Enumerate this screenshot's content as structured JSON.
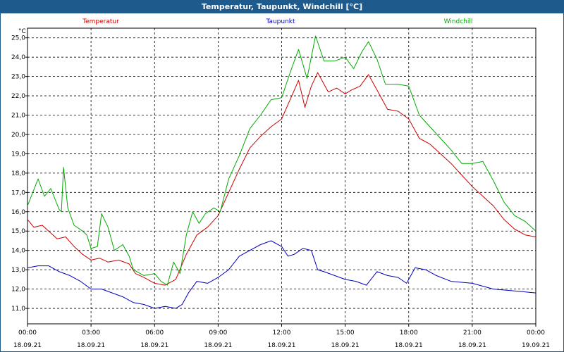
{
  "title": "Temperatur, Taupunkt, Windchill [°C]",
  "chart_data": {
    "type": "line",
    "title": "Temperatur, Taupunkt, Windchill [°C]",
    "ylabel": "°C",
    "ylim": [
      10.2,
      25.5
    ],
    "xlim": [
      0,
      24
    ],
    "yticks": [
      "25,0",
      "24,0",
      "23,0",
      "22,0",
      "21,0",
      "20,0",
      "19,0",
      "18,0",
      "17,0",
      "16,0",
      "15,0",
      "14,0",
      "13,0",
      "12,0",
      "11,0"
    ],
    "ytick_values": [
      25,
      24,
      23,
      22,
      21,
      20,
      19,
      18,
      17,
      16,
      15,
      14,
      13,
      12,
      11
    ],
    "xticks": [
      {
        "time": "00:00",
        "date": "18.09.21",
        "hour": 0
      },
      {
        "time": "03:00",
        "date": "18.09.21",
        "hour": 3
      },
      {
        "time": "06:00",
        "date": "18.09.21",
        "hour": 6
      },
      {
        "time": "09:00",
        "date": "18.09.21",
        "hour": 9
      },
      {
        "time": "12:00",
        "date": "18.09.21",
        "hour": 12
      },
      {
        "time": "15:00",
        "date": "18.09.21",
        "hour": 15
      },
      {
        "time": "18:00",
        "date": "18.09.21",
        "hour": 18
      },
      {
        "time": "21:00",
        "date": "18.09.21",
        "hour": 21
      },
      {
        "time": "00:00",
        "date": "19.09.21",
        "hour": 24
      }
    ],
    "grid": true,
    "legend_position": "top",
    "series": [
      {
        "name": "Temperatur",
        "color": "#cc0000",
        "points": [
          [
            0,
            15.6
          ],
          [
            0.3,
            15.2
          ],
          [
            0.7,
            15.3
          ],
          [
            1.0,
            15.0
          ],
          [
            1.4,
            14.6
          ],
          [
            1.8,
            14.7
          ],
          [
            2.2,
            14.2
          ],
          [
            2.6,
            13.8
          ],
          [
            3.0,
            13.5
          ],
          [
            3.4,
            13.6
          ],
          [
            3.8,
            13.4
          ],
          [
            4.3,
            13.5
          ],
          [
            4.8,
            13.3
          ],
          [
            5.1,
            12.8
          ],
          [
            5.5,
            12.6
          ],
          [
            6.0,
            12.3
          ],
          [
            6.5,
            12.2
          ],
          [
            7.0,
            12.5
          ],
          [
            7.5,
            13.8
          ],
          [
            8.0,
            14.8
          ],
          [
            8.5,
            15.2
          ],
          [
            9.0,
            15.8
          ],
          [
            9.5,
            17.0
          ],
          [
            10.0,
            18.2
          ],
          [
            10.5,
            19.3
          ],
          [
            11.0,
            19.9
          ],
          [
            11.5,
            20.4
          ],
          [
            12.0,
            20.8
          ],
          [
            12.4,
            21.8
          ],
          [
            12.8,
            22.8
          ],
          [
            13.1,
            21.4
          ],
          [
            13.4,
            22.5
          ],
          [
            13.7,
            23.2
          ],
          [
            14.2,
            22.2
          ],
          [
            14.6,
            22.4
          ],
          [
            15.0,
            22.1
          ],
          [
            15.3,
            22.3
          ],
          [
            15.7,
            22.5
          ],
          [
            16.1,
            23.1
          ],
          [
            16.5,
            22.3
          ],
          [
            17.0,
            21.3
          ],
          [
            17.5,
            21.2
          ],
          [
            18.0,
            20.8
          ],
          [
            18.5,
            19.8
          ],
          [
            19.0,
            19.5
          ],
          [
            19.5,
            19.0
          ],
          [
            20.0,
            18.5
          ],
          [
            20.5,
            17.9
          ],
          [
            21.0,
            17.3
          ],
          [
            21.5,
            16.8
          ],
          [
            22.0,
            16.3
          ],
          [
            22.5,
            15.6
          ],
          [
            23.0,
            15.1
          ],
          [
            23.5,
            14.8
          ],
          [
            24.0,
            14.7
          ]
        ]
      },
      {
        "name": "Taupunkt",
        "color": "#0000bb",
        "points": [
          [
            0,
            13.1
          ],
          [
            0.5,
            13.2
          ],
          [
            1.0,
            13.2
          ],
          [
            1.5,
            12.9
          ],
          [
            2.0,
            12.7
          ],
          [
            2.5,
            12.4
          ],
          [
            3.0,
            12.0
          ],
          [
            3.5,
            12.0
          ],
          [
            4.0,
            11.8
          ],
          [
            4.5,
            11.6
          ],
          [
            5.0,
            11.3
          ],
          [
            5.5,
            11.2
          ],
          [
            6.0,
            11.0
          ],
          [
            6.5,
            11.1
          ],
          [
            7.0,
            11.0
          ],
          [
            7.3,
            11.2
          ],
          [
            7.6,
            11.8
          ],
          [
            8.0,
            12.4
          ],
          [
            8.5,
            12.3
          ],
          [
            9.0,
            12.6
          ],
          [
            9.5,
            13.0
          ],
          [
            10.0,
            13.7
          ],
          [
            10.5,
            14.0
          ],
          [
            11.0,
            14.3
          ],
          [
            11.5,
            14.5
          ],
          [
            12.0,
            14.2
          ],
          [
            12.3,
            13.7
          ],
          [
            12.6,
            13.8
          ],
          [
            13.0,
            14.1
          ],
          [
            13.4,
            14.0
          ],
          [
            13.7,
            13.0
          ],
          [
            14.0,
            12.9
          ],
          [
            14.5,
            12.7
          ],
          [
            15.0,
            12.5
          ],
          [
            15.5,
            12.4
          ],
          [
            16.0,
            12.2
          ],
          [
            16.5,
            12.9
          ],
          [
            17.0,
            12.7
          ],
          [
            17.5,
            12.6
          ],
          [
            17.9,
            12.3
          ],
          [
            18.3,
            13.1
          ],
          [
            18.8,
            13.0
          ],
          [
            19.3,
            12.7
          ],
          [
            20.0,
            12.4
          ],
          [
            21.0,
            12.3
          ],
          [
            22.0,
            12.0
          ],
          [
            23.0,
            11.9
          ],
          [
            24.0,
            11.8
          ]
        ]
      },
      {
        "name": "Windchill",
        "color": "#00aa00",
        "points": [
          [
            0,
            16.3
          ],
          [
            0.5,
            17.7
          ],
          [
            0.8,
            16.8
          ],
          [
            1.1,
            17.2
          ],
          [
            1.5,
            16.1
          ],
          [
            1.6,
            16.0
          ],
          [
            1.7,
            18.3
          ],
          [
            1.9,
            16.2
          ],
          [
            2.2,
            15.3
          ],
          [
            2.6,
            15.0
          ],
          [
            2.8,
            14.8
          ],
          [
            3.0,
            14.1
          ],
          [
            3.3,
            14.2
          ],
          [
            3.5,
            15.9
          ],
          [
            3.8,
            15.2
          ],
          [
            4.1,
            14.0
          ],
          [
            4.5,
            14.3
          ],
          [
            4.8,
            13.7
          ],
          [
            5.0,
            13.0
          ],
          [
            5.5,
            12.7
          ],
          [
            6.0,
            12.8
          ],
          [
            6.3,
            12.4
          ],
          [
            6.6,
            12.2
          ],
          [
            6.9,
            13.4
          ],
          [
            7.2,
            12.8
          ],
          [
            7.5,
            14.8
          ],
          [
            7.8,
            16.0
          ],
          [
            8.1,
            15.4
          ],
          [
            8.4,
            15.9
          ],
          [
            8.8,
            16.2
          ],
          [
            9.1,
            16.0
          ],
          [
            9.5,
            17.7
          ],
          [
            10.0,
            18.9
          ],
          [
            10.5,
            20.3
          ],
          [
            11.0,
            21.0
          ],
          [
            11.5,
            21.8
          ],
          [
            12.0,
            21.9
          ],
          [
            12.4,
            23.2
          ],
          [
            12.8,
            24.4
          ],
          [
            13.2,
            22.9
          ],
          [
            13.6,
            25.1
          ],
          [
            14.0,
            23.8
          ],
          [
            14.5,
            23.8
          ],
          [
            15.0,
            24.0
          ],
          [
            15.4,
            23.4
          ],
          [
            15.8,
            24.3
          ],
          [
            16.1,
            24.8
          ],
          [
            16.5,
            23.9
          ],
          [
            16.9,
            22.6
          ],
          [
            17.5,
            22.6
          ],
          [
            18.0,
            22.5
          ],
          [
            18.5,
            21.0
          ],
          [
            19.0,
            20.4
          ],
          [
            19.5,
            19.8
          ],
          [
            20.0,
            19.2
          ],
          [
            20.5,
            18.5
          ],
          [
            21.0,
            18.5
          ],
          [
            21.5,
            18.6
          ],
          [
            22.0,
            17.6
          ],
          [
            22.5,
            16.5
          ],
          [
            23.0,
            15.8
          ],
          [
            23.5,
            15.5
          ],
          [
            24.0,
            15.0
          ]
        ]
      }
    ]
  }
}
